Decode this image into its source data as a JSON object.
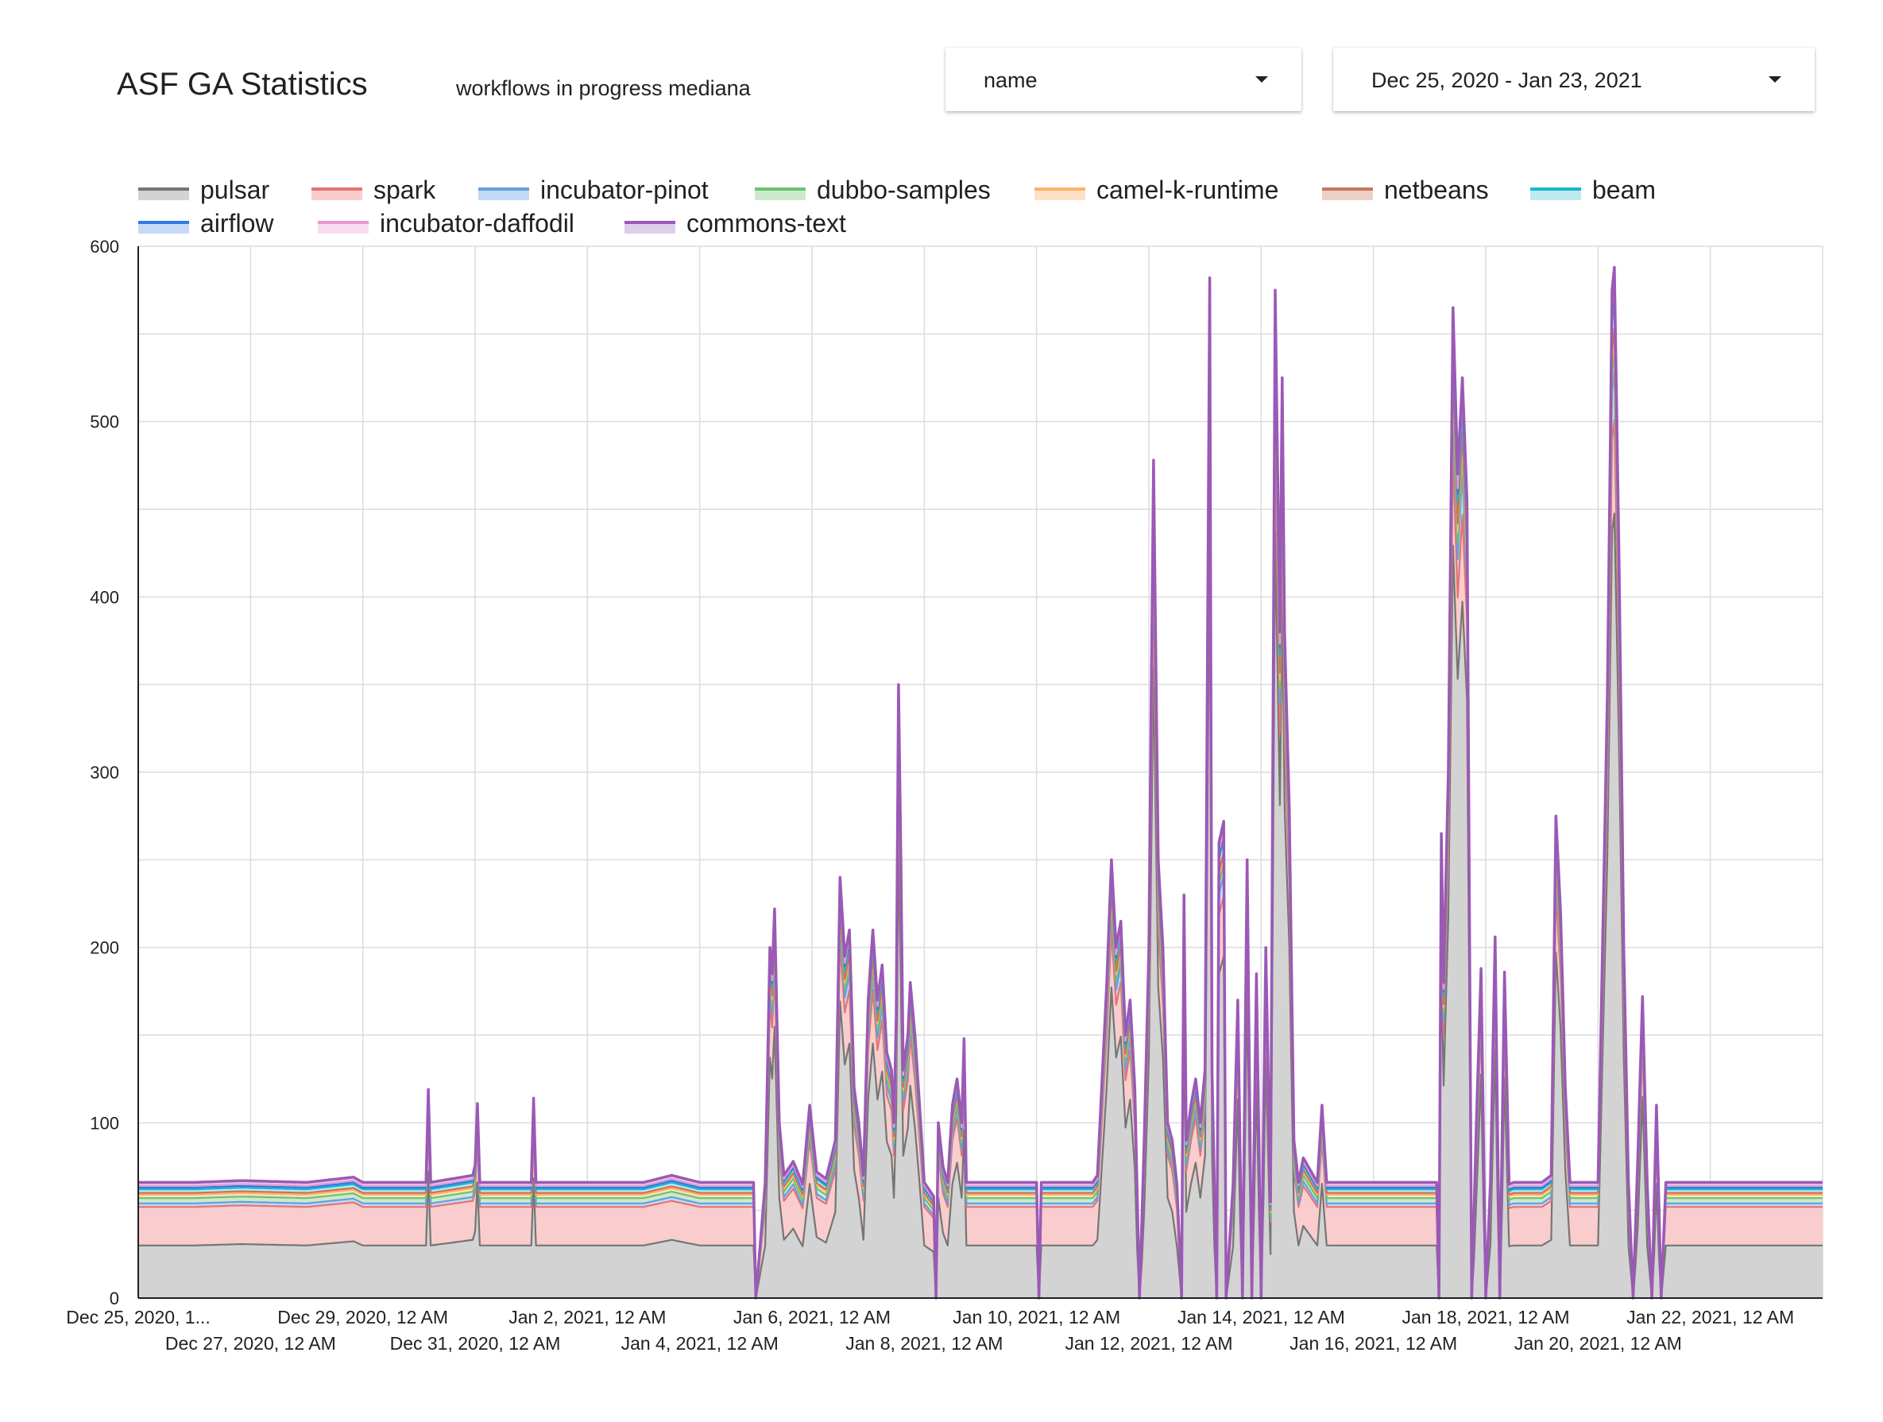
{
  "header": {
    "title": "ASF GA Statistics",
    "subtitle": "workflows in progress mediana",
    "name_filter": "name",
    "date_range": "Dec 25, 2020 - Jan 23, 2021"
  },
  "chart_data": {
    "type": "area",
    "stacked": true,
    "xlabel": "",
    "ylabel": "",
    "ylim": [
      0,
      600
    ],
    "yticks": [
      0,
      100,
      200,
      300,
      400,
      500,
      600
    ],
    "xlim": [
      "2020-12-25T00:00",
      "2021-01-24T00:00"
    ],
    "grid": true,
    "legend_position": "top",
    "xtick_labels": [
      {
        "date": "2020-12-25T00:00",
        "label": "Dec 25, 2020, 1...",
        "row": 0
      },
      {
        "date": "2020-12-27T00:00",
        "label": "Dec 27, 2020, 12 AM",
        "row": 1
      },
      {
        "date": "2020-12-29T00:00",
        "label": "Dec 29, 2020, 12 AM",
        "row": 0
      },
      {
        "date": "2020-12-31T00:00",
        "label": "Dec 31, 2020, 12 AM",
        "row": 1
      },
      {
        "date": "2021-01-02T00:00",
        "label": "Jan 2, 2021, 12 AM",
        "row": 0
      },
      {
        "date": "2021-01-04T00:00",
        "label": "Jan 4, 2021, 12 AM",
        "row": 1
      },
      {
        "date": "2021-01-06T00:00",
        "label": "Jan 6, 2021, 12 AM",
        "row": 0
      },
      {
        "date": "2021-01-08T00:00",
        "label": "Jan 8, 2021, 12 AM",
        "row": 1
      },
      {
        "date": "2021-01-10T00:00",
        "label": "Jan 10, 2021, 12 AM",
        "row": 0
      },
      {
        "date": "2021-01-12T00:00",
        "label": "Jan 12, 2021, 12 AM",
        "row": 1
      },
      {
        "date": "2021-01-14T00:00",
        "label": "Jan 14, 2021, 12 AM",
        "row": 0
      },
      {
        "date": "2021-01-16T00:00",
        "label": "Jan 16, 2021, 12 AM",
        "row": 1
      },
      {
        "date": "2021-01-18T00:00",
        "label": "Jan 18, 2021, 12 AM",
        "row": 0
      },
      {
        "date": "2021-01-20T00:00",
        "label": "Jan 20, 2021, 12 AM",
        "row": 1
      },
      {
        "date": "2021-01-22T00:00",
        "label": "Jan 22, 2021, 12 AM",
        "row": 0
      }
    ],
    "series": [
      {
        "name": "pulsar",
        "color": "#757575",
        "fill": "#d3d3d3"
      },
      {
        "name": "spark",
        "color": "#e57373",
        "fill": "#f9cdcd"
      },
      {
        "name": "incubator-pinot",
        "color": "#64a0dc",
        "fill": "#c3d9f4"
      },
      {
        "name": "dubbo-samples",
        "color": "#6cc36c",
        "fill": "#cde9cd"
      },
      {
        "name": "camel-k-runtime",
        "color": "#ffb066",
        "fill": "#fde1c6"
      },
      {
        "name": "netbeans",
        "color": "#c8745a",
        "fill": "#ecd0c6"
      },
      {
        "name": "beam",
        "color": "#17b7cc",
        "fill": "#bfe9ef"
      },
      {
        "name": "airflow",
        "color": "#2f7ae5",
        "fill": "#c6daf7"
      },
      {
        "name": "incubator-daffodil",
        "color": "#e89ad0",
        "fill": "#f8dcef"
      },
      {
        "name": "commons-text",
        "color": "#9b59b6",
        "fill": "#dfcdea"
      }
    ],
    "base_levels": {
      "pulsar": 30,
      "spark": 22,
      "incubator-pinot": 2,
      "dubbo-samples": 3,
      "camel-k-runtime": 2,
      "netbeans": 1,
      "beam": 2,
      "airflow": 1,
      "incubator-daffodil": 1,
      "commons-text": 2
    },
    "total_profile": [
      [
        "2020-12-25T00:00",
        66
      ],
      [
        "2020-12-26T00:00",
        66
      ],
      [
        "2020-12-26T20:00",
        67
      ],
      [
        "2020-12-28T00:00",
        66
      ],
      [
        "2020-12-28T20:00",
        69
      ],
      [
        "2020-12-29T00:00",
        66
      ],
      [
        "2020-12-30T03:00",
        66
      ],
      [
        "2020-12-30T04:00",
        119
      ],
      [
        "2020-12-30T05:00",
        66
      ],
      [
        "2020-12-30T23:00",
        70
      ],
      [
        "2020-12-31T00:00",
        76
      ],
      [
        "2020-12-31T01:00",
        111
      ],
      [
        "2020-12-31T02:00",
        66
      ],
      [
        "2021-01-01T00:00",
        66
      ],
      [
        "2021-01-01T01:00",
        114
      ],
      [
        "2021-01-01T02:00",
        66
      ],
      [
        "2021-01-03T00:00",
        66
      ],
      [
        "2021-01-03T12:00",
        70
      ],
      [
        "2021-01-04T00:00",
        66
      ],
      [
        "2021-01-04T23:00",
        66
      ],
      [
        "2021-01-05T00:00",
        0
      ],
      [
        "2021-01-05T04:00",
        66
      ],
      [
        "2021-01-05T06:00",
        200
      ],
      [
        "2021-01-05T07:00",
        185
      ],
      [
        "2021-01-05T08:00",
        222
      ],
      [
        "2021-01-05T10:00",
        100
      ],
      [
        "2021-01-05T12:00",
        70
      ],
      [
        "2021-01-05T16:00",
        78
      ],
      [
        "2021-01-05T20:00",
        65
      ],
      [
        "2021-01-05T23:00",
        110
      ],
      [
        "2021-01-06T02:00",
        72
      ],
      [
        "2021-01-06T06:00",
        68
      ],
      [
        "2021-01-06T10:00",
        90
      ],
      [
        "2021-01-06T12:00",
        240
      ],
      [
        "2021-01-06T14:00",
        195
      ],
      [
        "2021-01-06T16:00",
        210
      ],
      [
        "2021-01-06T18:00",
        120
      ],
      [
        "2021-01-06T20:00",
        100
      ],
      [
        "2021-01-06T22:00",
        70
      ],
      [
        "2021-01-07T00:00",
        170
      ],
      [
        "2021-01-07T02:00",
        210
      ],
      [
        "2021-01-07T04:00",
        170
      ],
      [
        "2021-01-07T06:00",
        190
      ],
      [
        "2021-01-07T08:00",
        140
      ],
      [
        "2021-01-07T10:00",
        130
      ],
      [
        "2021-01-07T11:00",
        100
      ],
      [
        "2021-01-07T12:00",
        160
      ],
      [
        "2021-01-07T13:00",
        350
      ],
      [
        "2021-01-07T14:00",
        250
      ],
      [
        "2021-01-07T15:00",
        130
      ],
      [
        "2021-01-07T17:00",
        150
      ],
      [
        "2021-01-07T18:00",
        180
      ],
      [
        "2021-01-07T20:00",
        150
      ],
      [
        "2021-01-07T22:00",
        110
      ],
      [
        "2021-01-08T00:00",
        66
      ],
      [
        "2021-01-08T02:00",
        62
      ],
      [
        "2021-01-08T04:00",
        58
      ],
      [
        "2021-01-08T05:00",
        0
      ],
      [
        "2021-01-08T06:00",
        100
      ],
      [
        "2021-01-08T08:00",
        75
      ],
      [
        "2021-01-08T10:00",
        66
      ],
      [
        "2021-01-08T12:00",
        110
      ],
      [
        "2021-01-08T14:00",
        125
      ],
      [
        "2021-01-08T16:00",
        100
      ],
      [
        "2021-01-08T17:00",
        148
      ],
      [
        "2021-01-08T18:00",
        66
      ],
      [
        "2021-01-10T00:00",
        66
      ],
      [
        "2021-01-10T01:00",
        0
      ],
      [
        "2021-01-10T02:00",
        66
      ],
      [
        "2021-01-11T00:00",
        66
      ],
      [
        "2021-01-11T02:00",
        70
      ],
      [
        "2021-01-11T06:00",
        180
      ],
      [
        "2021-01-11T08:00",
        250
      ],
      [
        "2021-01-11T10:00",
        200
      ],
      [
        "2021-01-11T12:00",
        215
      ],
      [
        "2021-01-11T14:00",
        150
      ],
      [
        "2021-01-11T16:00",
        170
      ],
      [
        "2021-01-11T18:00",
        120
      ],
      [
        "2021-01-11T20:00",
        0
      ],
      [
        "2021-01-11T22:00",
        90
      ],
      [
        "2021-01-12T00:00",
        200
      ],
      [
        "2021-01-12T02:00",
        478
      ],
      [
        "2021-01-12T04:00",
        250
      ],
      [
        "2021-01-12T06:00",
        200
      ],
      [
        "2021-01-12T08:00",
        100
      ],
      [
        "2021-01-12T10:00",
        90
      ],
      [
        "2021-01-12T12:00",
        65
      ],
      [
        "2021-01-12T14:00",
        0
      ],
      [
        "2021-01-12T15:00",
        230
      ],
      [
        "2021-01-12T16:00",
        90
      ],
      [
        "2021-01-12T18:00",
        110
      ],
      [
        "2021-01-12T20:00",
        125
      ],
      [
        "2021-01-12T22:00",
        100
      ],
      [
        "2021-01-13T00:00",
        130
      ],
      [
        "2021-01-13T02:00",
        582
      ],
      [
        "2021-01-13T03:00",
        130
      ],
      [
        "2021-01-13T04:00",
        66
      ],
      [
        "2021-01-13T05:00",
        0
      ],
      [
        "2021-01-13T06:00",
        260
      ],
      [
        "2021-01-13T08:00",
        272
      ],
      [
        "2021-01-13T09:00",
        0
      ],
      [
        "2021-01-13T12:00",
        65
      ],
      [
        "2021-01-13T14:00",
        170
      ],
      [
        "2021-01-13T16:00",
        0
      ],
      [
        "2021-01-13T18:00",
        250
      ],
      [
        "2021-01-13T20:00",
        0
      ],
      [
        "2021-01-13T22:00",
        185
      ],
      [
        "2021-01-14T00:00",
        0
      ],
      [
        "2021-01-14T02:00",
        200
      ],
      [
        "2021-01-14T04:00",
        55
      ],
      [
        "2021-01-14T06:00",
        575
      ],
      [
        "2021-01-14T08:00",
        380
      ],
      [
        "2021-01-14T09:00",
        525
      ],
      [
        "2021-01-14T10:00",
        380
      ],
      [
        "2021-01-14T12:00",
        280
      ],
      [
        "2021-01-14T14:00",
        90
      ],
      [
        "2021-01-14T16:00",
        66
      ],
      [
        "2021-01-14T18:00",
        80
      ],
      [
        "2021-01-15T00:00",
        66
      ],
      [
        "2021-01-15T02:00",
        110
      ],
      [
        "2021-01-15T04:00",
        66
      ],
      [
        "2021-01-16T00:00",
        66
      ],
      [
        "2021-01-17T00:00",
        66
      ],
      [
        "2021-01-17T03:00",
        66
      ],
      [
        "2021-01-17T04:00",
        0
      ],
      [
        "2021-01-17T05:00",
        265
      ],
      [
        "2021-01-17T06:00",
        180
      ],
      [
        "2021-01-17T08:00",
        300
      ],
      [
        "2021-01-17T10:00",
        565
      ],
      [
        "2021-01-17T12:00",
        470
      ],
      [
        "2021-01-17T14:00",
        525
      ],
      [
        "2021-01-17T16:00",
        455
      ],
      [
        "2021-01-17T18:00",
        0
      ],
      [
        "2021-01-17T20:00",
        100
      ],
      [
        "2021-01-17T22:00",
        188
      ],
      [
        "2021-01-18T00:00",
        0
      ],
      [
        "2021-01-18T02:00",
        66
      ],
      [
        "2021-01-18T04:00",
        206
      ],
      [
        "2021-01-18T06:00",
        0
      ],
      [
        "2021-01-18T08:00",
        186
      ],
      [
        "2021-01-18T10:00",
        65
      ],
      [
        "2021-01-18T12:00",
        66
      ],
      [
        "2021-01-19T00:00",
        66
      ],
      [
        "2021-01-19T04:00",
        70
      ],
      [
        "2021-01-19T06:00",
        275
      ],
      [
        "2021-01-19T08:00",
        220
      ],
      [
        "2021-01-19T10:00",
        120
      ],
      [
        "2021-01-19T12:00",
        66
      ],
      [
        "2021-01-20T00:00",
        66
      ],
      [
        "2021-01-20T04:00",
        345
      ],
      [
        "2021-01-20T06:00",
        575
      ],
      [
        "2021-01-20T07:00",
        588
      ],
      [
        "2021-01-20T09:00",
        420
      ],
      [
        "2021-01-20T11:00",
        200
      ],
      [
        "2021-01-20T13:00",
        66
      ],
      [
        "2021-01-20T15:00",
        0
      ],
      [
        "2021-01-20T17:00",
        80
      ],
      [
        "2021-01-20T19:00",
        172
      ],
      [
        "2021-01-20T21:00",
        66
      ],
      [
        "2021-01-20T23:00",
        0
      ],
      [
        "2021-01-21T01:00",
        110
      ],
      [
        "2021-01-21T03:00",
        0
      ],
      [
        "2021-01-21T05:00",
        66
      ],
      [
        "2021-01-24T00:00",
        66
      ]
    ]
  }
}
